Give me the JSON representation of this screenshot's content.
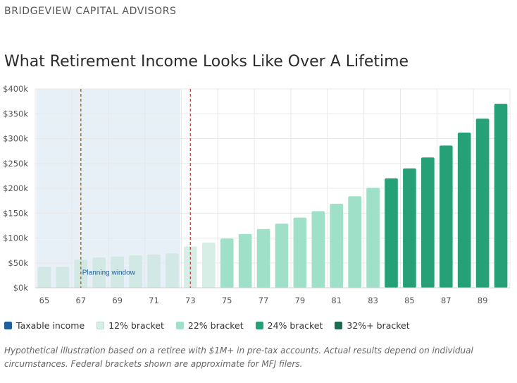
{
  "brand": "BRIDGEVIEW CAPITAL ADVISORS",
  "title": "What Retirement Income Looks Like Over A Lifetime",
  "colors": {
    "taxable": "#1f5fa0",
    "bracket12": "#d7eee6",
    "bracket22": "#9fe0c9",
    "bracket24": "#25a077",
    "bracket32": "#1d6b51",
    "grid": "#e8e8e8",
    "window_fill": "#e3edf4",
    "line_left": "#8a6f3a",
    "line_right": "#c0504d"
  },
  "legend": {
    "taxable": "Taxable income",
    "b12": "12% bracket",
    "b22": "22% bracket",
    "b24": "24% bracket",
    "b32": "32%+ bracket"
  },
  "chart_data": {
    "type": "bar",
    "xlabel": "",
    "ylabel": "",
    "ylim": [
      0,
      400000
    ],
    "y_ticks": [
      "$0k",
      "$50k",
      "$100k",
      "$150k",
      "$200k",
      "$250k",
      "$300k",
      "$350k",
      "$400k"
    ],
    "y_tick_values": [
      0,
      50000,
      100000,
      150000,
      200000,
      250000,
      300000,
      350000,
      400000
    ],
    "categories": [
      65,
      66,
      67,
      68,
      69,
      70,
      71,
      72,
      73,
      74,
      75,
      76,
      77,
      78,
      79,
      80,
      81,
      82,
      83,
      84,
      85,
      86,
      87,
      88,
      89,
      90
    ],
    "x_tick_labels": [
      "65",
      "67",
      "69",
      "71",
      "73",
      "75",
      "77",
      "79",
      "81",
      "83",
      "85",
      "87",
      "89"
    ],
    "values": [
      42000,
      42000,
      57000,
      61000,
      63000,
      65000,
      67000,
      69000,
      83000,
      91000,
      99000,
      108000,
      118000,
      129000,
      141000,
      154000,
      169000,
      184000,
      201000,
      220000,
      240000,
      262000,
      286000,
      312000,
      340000,
      370000
    ],
    "bracket": [
      "12",
      "12",
      "12",
      "12",
      "12",
      "12",
      "12",
      "12",
      "12",
      "12",
      "22",
      "22",
      "22",
      "22",
      "22",
      "22",
      "22",
      "22",
      "22",
      "24",
      "24",
      "24",
      "24",
      "24",
      "24",
      "24"
    ],
    "planning_window": {
      "label": "Planning window",
      "start_age": 65,
      "end_age": 72
    },
    "reference_lines": [
      67,
      73
    ],
    "grid": true,
    "legend_position": "bottom-left"
  },
  "footnote": "Hypothetical illustration based on a retiree with $1M+ in pre-tax accounts. Actual results depend on individual circumstances. Federal brackets shown are approximate for MFJ filers."
}
